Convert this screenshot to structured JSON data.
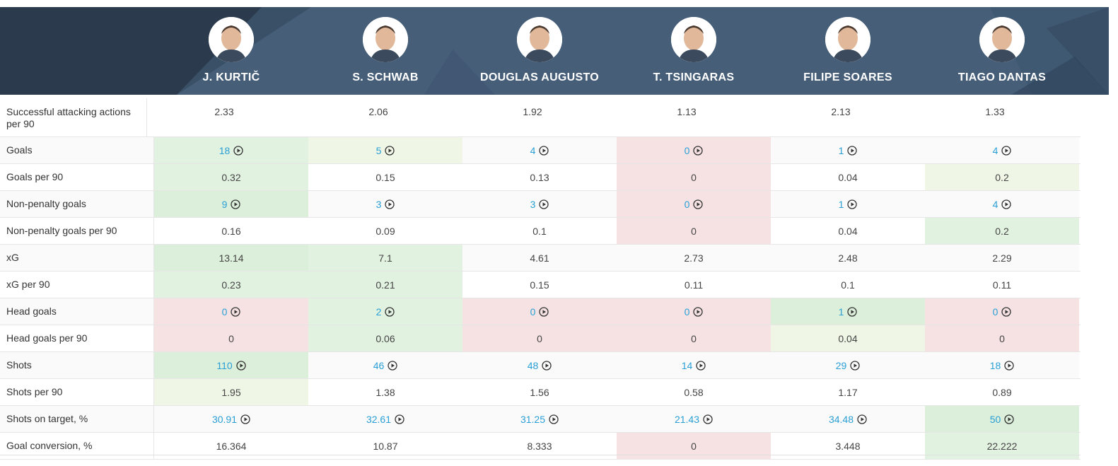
{
  "players": [
    {
      "name": "J. KURTIČ"
    },
    {
      "name": "S. SCHWAB"
    },
    {
      "name": "DOUGLAS AUGUSTO"
    },
    {
      "name": "T. TSINGARAS"
    },
    {
      "name": "FILIPE SOARES"
    },
    {
      "name": "TIAGO DANTAS"
    }
  ],
  "rows": [
    {
      "label": "Successful attacking actions per 90",
      "values": [
        "2.33",
        "2.06",
        "1.92",
        "1.13",
        "2.13",
        "1.33"
      ],
      "link": false,
      "shade": [
        "none",
        "none",
        "none",
        "none",
        "none",
        "none"
      ]
    },
    {
      "label": "Goals",
      "values": [
        "18",
        "5",
        "4",
        "0",
        "1",
        "4"
      ],
      "link": true,
      "shade": [
        "g2",
        "g1",
        "none",
        "r1",
        "none",
        "none"
      ]
    },
    {
      "label": "Goals per 90",
      "values": [
        "0.32",
        "0.15",
        "0.13",
        "0",
        "0.04",
        "0.2"
      ],
      "link": false,
      "shade": [
        "g2",
        "none",
        "none",
        "r1",
        "none",
        "g1"
      ]
    },
    {
      "label": "Non-penalty goals",
      "values": [
        "9",
        "3",
        "3",
        "0",
        "1",
        "4"
      ],
      "link": true,
      "shade": [
        "g3",
        "none",
        "none",
        "r1",
        "none",
        "none"
      ]
    },
    {
      "label": "Non-penalty goals per 90",
      "values": [
        "0.16",
        "0.09",
        "0.1",
        "0",
        "0.04",
        "0.2"
      ],
      "link": false,
      "shade": [
        "none",
        "none",
        "none",
        "r1",
        "none",
        "g2"
      ]
    },
    {
      "label": "xG",
      "values": [
        "13.14",
        "7.1",
        "4.61",
        "2.73",
        "2.48",
        "2.29"
      ],
      "link": false,
      "shade": [
        "g3",
        "g2",
        "none",
        "none",
        "none",
        "none"
      ]
    },
    {
      "label": "xG per 90",
      "values": [
        "0.23",
        "0.21",
        "0.15",
        "0.11",
        "0.1",
        "0.11"
      ],
      "link": false,
      "shade": [
        "g2",
        "g2",
        "none",
        "none",
        "none",
        "none"
      ]
    },
    {
      "label": "Head goals",
      "values": [
        "0",
        "2",
        "0",
        "0",
        "1",
        "0"
      ],
      "link": true,
      "shade": [
        "r1",
        "g2",
        "r1",
        "r1",
        "g3",
        "r1"
      ]
    },
    {
      "label": "Head goals per 90",
      "values": [
        "0",
        "0.06",
        "0",
        "0",
        "0.04",
        "0"
      ],
      "link": false,
      "shade": [
        "r1",
        "g2",
        "r1",
        "r1",
        "g1",
        "r1"
      ]
    },
    {
      "label": "Shots",
      "values": [
        "110",
        "46",
        "48",
        "14",
        "29",
        "18"
      ],
      "link": true,
      "shade": [
        "g3",
        "none",
        "none",
        "none",
        "none",
        "none"
      ]
    },
    {
      "label": "Shots per 90",
      "values": [
        "1.95",
        "1.38",
        "1.56",
        "0.58",
        "1.17",
        "0.89"
      ],
      "link": false,
      "shade": [
        "g1",
        "none",
        "none",
        "none",
        "none",
        "none"
      ]
    },
    {
      "label": "Shots on target, %",
      "values": [
        "30.91",
        "32.61",
        "31.25",
        "21.43",
        "34.48",
        "50"
      ],
      "link": true,
      "shade": [
        "none",
        "none",
        "none",
        "none",
        "none",
        "g3"
      ]
    },
    {
      "label": "Goal conversion, %",
      "values": [
        "16.364",
        "10.87",
        "8.333",
        "0",
        "3.448",
        "22.222"
      ],
      "link": false,
      "shade": [
        "none",
        "none",
        "none",
        "r1",
        "none",
        "g2"
      ]
    }
  ],
  "colors": {
    "header_bg": "#465e78",
    "header_dark": "#2b3a4c",
    "link": "#2a9fd6",
    "green_light": "#f0f6e6",
    "green": "#e2f2e0",
    "green_strong": "#dcefda",
    "red": "#f6e2e3"
  }
}
